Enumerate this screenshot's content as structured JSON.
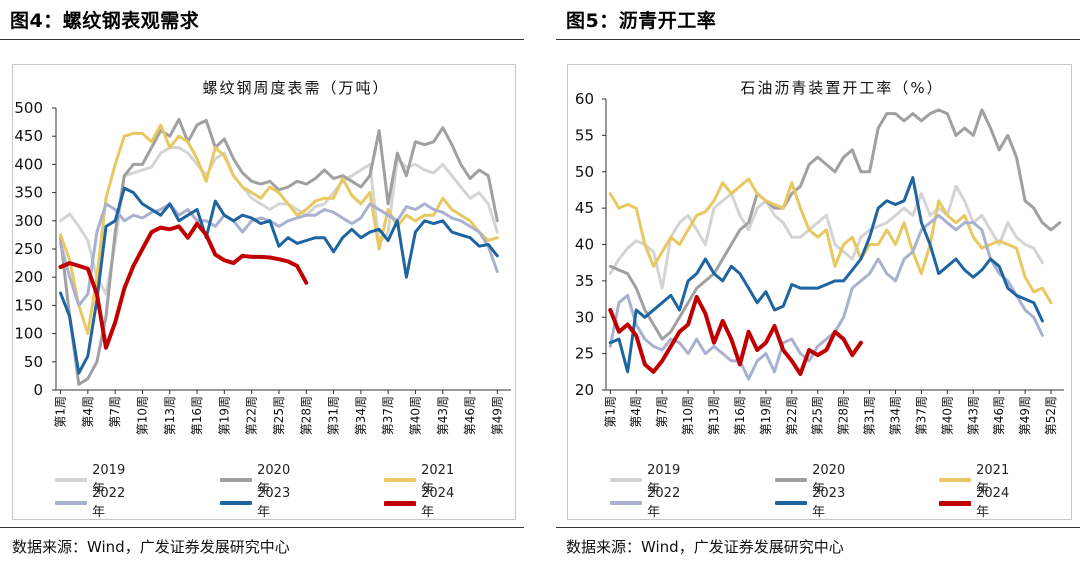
{
  "left": {
    "panel_title": "图4：螺纹钢表观需求",
    "source": "数据来源：Wind，广发证券发展研究中心"
  },
  "right": {
    "panel_title": "图5：沥青开工率",
    "source": "数据来源：Wind，广发证券发展研究中心"
  },
  "chart_data": [
    {
      "type": "line",
      "title": "螺纹钢周度表需（万吨）",
      "xlabel": "",
      "ylabel": "",
      "ylim": [
        0,
        500
      ],
      "yticks": [
        "0",
        "50",
        "100",
        "150",
        "200",
        "250",
        "300",
        "350",
        "400",
        "450",
        "500"
      ],
      "xticks": [
        "第1周",
        "第4周",
        "第7周",
        "第10周",
        "第13周",
        "第16周",
        "第19周",
        "第22周",
        "第25周",
        "第28周",
        "第31周",
        "第34周",
        "第37周",
        "第40周",
        "第43周",
        "第46周",
        "第49周"
      ],
      "xtick_weeks": [
        1,
        4,
        7,
        10,
        13,
        16,
        19,
        22,
        25,
        28,
        31,
        34,
        37,
        40,
        43,
        46,
        49
      ],
      "xmax": 50,
      "series": [
        {
          "name": "2019年",
          "color": "#d4d4d4",
          "width": 3,
          "values": [
            300,
            312,
            290,
            265,
            200,
            170,
            260,
            380,
            385,
            390,
            395,
            420,
            430,
            430,
            420,
            400,
            380,
            410,
            420,
            380,
            360,
            340,
            330,
            320,
            330,
            330,
            320,
            310,
            325,
            330,
            350,
            370,
            380,
            390,
            400,
            260,
            280,
            410,
            395,
            400,
            390,
            385,
            400,
            380,
            360,
            340,
            350,
            330,
            280
          ]
        },
        {
          "name": "2020年",
          "color": "#a0a0a0",
          "width": 3,
          "values": [
            270,
            130,
            10,
            20,
            50,
            130,
            280,
            380,
            400,
            400,
            430,
            460,
            450,
            480,
            440,
            470,
            478,
            430,
            445,
            410,
            385,
            370,
            365,
            370,
            355,
            360,
            370,
            365,
            375,
            390,
            375,
            380,
            370,
            360,
            380,
            460,
            330,
            420,
            380,
            440,
            435,
            440,
            465,
            435,
            400,
            375,
            390,
            380,
            300
          ]
        },
        {
          "name": "2021年",
          "color": "#e8c860",
          "width": 3,
          "values": [
            275,
            230,
            150,
            100,
            200,
            340,
            400,
            450,
            455,
            455,
            440,
            470,
            430,
            450,
            440,
            410,
            370,
            430,
            415,
            380,
            360,
            350,
            340,
            360,
            350,
            330,
            310,
            320,
            335,
            340,
            340,
            375,
            345,
            330,
            350,
            250,
            320,
            290,
            310,
            300,
            310,
            310,
            340,
            320,
            310,
            300,
            280,
            265,
            270
          ]
        },
        {
          "name": "2022年",
          "color": "#aab0d0",
          "width": 3,
          "values": [
            260,
            200,
            150,
            170,
            280,
            330,
            320,
            300,
            310,
            305,
            315,
            320,
            330,
            310,
            320,
            300,
            300,
            290,
            310,
            300,
            280,
            300,
            305,
            300,
            290,
            300,
            305,
            310,
            310,
            320,
            315,
            305,
            295,
            305,
            330,
            320,
            310,
            300,
            325,
            320,
            330,
            320,
            315,
            305,
            300,
            290,
            280,
            255,
            210
          ]
        },
        {
          "name": "2023年",
          "color": "#1e64a0",
          "width": 3,
          "values": [
            172,
            130,
            30,
            60,
            160,
            290,
            300,
            358,
            350,
            330,
            320,
            310,
            330,
            300,
            310,
            320,
            270,
            335,
            310,
            300,
            310,
            305,
            295,
            300,
            255,
            270,
            260,
            265,
            270,
            270,
            245,
            270,
            285,
            270,
            280,
            285,
            265,
            300,
            200,
            280,
            300,
            295,
            300,
            280,
            275,
            270,
            255,
            258,
            238
          ]
        },
        {
          "name": "2024年",
          "color": "#c00000",
          "width": 4,
          "values": [
            218,
            225,
            220,
            215,
            170,
            75,
            120,
            180,
            220,
            250,
            280,
            288,
            285,
            290,
            270,
            295,
            275,
            240,
            230,
            225,
            238,
            236,
            236,
            235,
            232,
            228,
            220,
            190
          ]
        }
      ]
    },
    {
      "type": "line",
      "title": "石油沥青装置开工率（%）",
      "xlabel": "",
      "ylabel": "",
      "ylim": [
        20,
        60
      ],
      "yticks": [
        "20",
        "25",
        "30",
        "35",
        "40",
        "45",
        "50",
        "55",
        "60"
      ],
      "xticks": [
        "第1周",
        "第4周",
        "第7周",
        "第10周",
        "第13周",
        "第16周",
        "第19周",
        "第22周",
        "第25周",
        "第28周",
        "第31周",
        "第34周",
        "第37周",
        "第40周",
        "第43周",
        "第46周",
        "第49周",
        "第52周"
      ],
      "xtick_weeks": [
        1,
        4,
        7,
        10,
        13,
        16,
        19,
        22,
        25,
        28,
        31,
        34,
        37,
        40,
        43,
        46,
        49,
        52
      ],
      "xmax": 53,
      "series": [
        {
          "name": "2019年",
          "color": "#d4d4d4",
          "width": 3,
          "values": [
            36,
            38,
            39.5,
            40.5,
            40,
            39,
            34,
            41,
            43,
            44,
            42,
            40,
            45,
            46,
            47,
            44,
            42,
            45,
            46,
            44,
            43,
            41,
            41,
            42,
            43,
            44,
            40,
            39,
            38,
            41,
            42,
            42.5,
            43,
            44,
            45,
            44,
            47,
            44,
            45,
            44,
            48,
            46,
            43,
            44,
            42,
            40,
            43,
            41,
            40,
            39.5,
            37.5
          ]
        },
        {
          "name": "2020年",
          "color": "#a0a0a0",
          "width": 3,
          "values": [
            37,
            36.5,
            36,
            34,
            31,
            29,
            27,
            28,
            30,
            32,
            34,
            35,
            36,
            38,
            40,
            42,
            43,
            47,
            46,
            45,
            45,
            47,
            48,
            51,
            52,
            51,
            50,
            52,
            53,
            50,
            50,
            56,
            58,
            58,
            57,
            58,
            57,
            58,
            58.5,
            58,
            55,
            56,
            55,
            58.5,
            56,
            53,
            55,
            52,
            46,
            45,
            43,
            42,
            43
          ]
        },
        {
          "name": "2021年",
          "color": "#e8c860",
          "width": 3,
          "values": [
            47,
            45,
            45.5,
            45,
            40,
            37,
            39,
            41,
            40,
            42,
            44,
            44.5,
            46,
            48.5,
            47,
            48,
            49,
            47,
            46,
            45.5,
            45,
            48.5,
            45,
            42,
            41,
            42,
            37,
            40,
            41,
            38,
            40,
            40,
            42,
            40,
            43,
            39,
            36,
            40,
            46,
            44,
            43,
            44,
            41,
            39.5,
            40,
            40.5,
            40,
            39.5,
            35.5,
            33.5,
            34,
            32
          ]
        },
        {
          "name": "2022年",
          "color": "#aab0d0",
          "width": 3,
          "values": [
            26,
            32,
            33,
            29,
            27,
            26,
            25.5,
            27,
            26.5,
            25,
            27,
            25,
            26,
            25,
            24,
            24,
            21.5,
            24,
            25,
            22.5,
            26.5,
            27,
            25,
            24,
            26,
            27,
            28,
            30,
            34,
            35,
            36,
            38,
            36,
            35,
            38,
            39,
            42,
            43,
            44,
            43,
            42,
            43,
            43,
            42,
            38,
            36,
            35,
            33,
            31,
            30,
            27.5
          ]
        },
        {
          "name": "2023年",
          "color": "#1e64a0",
          "width": 3,
          "values": [
            26.5,
            27,
            22.5,
            31,
            30,
            31,
            32,
            33,
            31,
            35,
            36,
            38,
            36,
            35,
            37,
            36,
            34,
            32,
            33.5,
            31,
            31.5,
            34.5,
            34,
            34,
            34,
            34.5,
            35,
            35,
            36.5,
            38,
            41,
            45,
            46,
            45.5,
            46,
            49.2,
            43,
            40,
            36,
            37,
            38,
            36.5,
            35.5,
            36.5,
            38,
            37,
            34,
            33,
            32.5,
            32,
            29.5
          ]
        },
        {
          "name": "2024年",
          "color": "#c00000",
          "width": 4,
          "values": [
            31,
            28,
            29,
            27.5,
            23.5,
            22.5,
            24,
            26,
            28,
            29,
            32.8,
            30.5,
            26.5,
            29.5,
            27,
            23.5,
            28,
            25.5,
            26.5,
            28.8,
            25.5,
            24,
            22.2,
            25.5,
            24.8,
            25.5,
            28,
            27,
            24.8,
            26.5
          ]
        }
      ]
    }
  ]
}
